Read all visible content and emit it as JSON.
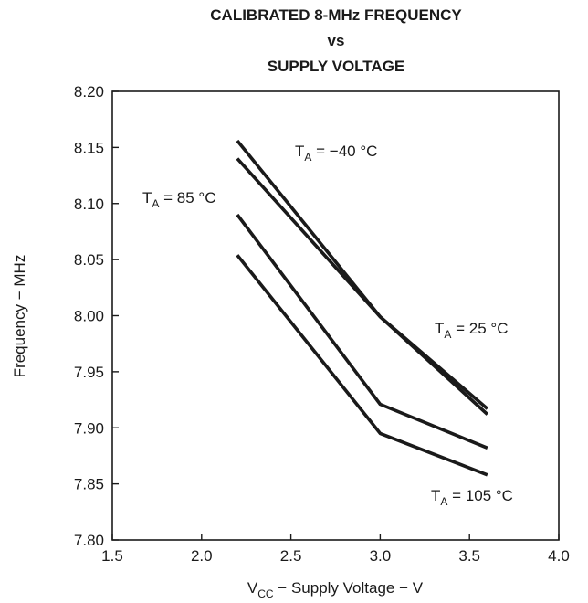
{
  "chart_data": {
    "type": "line",
    "title_lines": [
      "CALIBRATED 8-MHz FREQUENCY",
      "vs",
      "SUPPLY VOLTAGE"
    ],
    "xlabel": {
      "base": "V",
      "sub": "CC",
      "rest": " − Supply Voltage − V"
    },
    "ylabel": "Frequency − MHz",
    "xlim": [
      1.5,
      4.0
    ],
    "ylim": [
      7.8,
      8.2
    ],
    "x_ticks": [
      "1.5",
      "2.0",
      "2.5",
      "3.0",
      "3.5",
      "4.0"
    ],
    "y_ticks": [
      "7.80",
      "7.85",
      "7.90",
      "7.95",
      "8.00",
      "8.05",
      "8.10",
      "8.15",
      "8.20"
    ],
    "grid": false,
    "series": [
      {
        "name": "T_A = −40 °C",
        "x": [
          2.2,
          3.0,
          3.6
        ],
        "y": [
          8.156,
          7.999,
          7.912
        ]
      },
      {
        "name": "T_A = 25 °C",
        "x": [
          2.2,
          3.0,
          3.6
        ],
        "y": [
          8.14,
          7.999,
          7.917
        ]
      },
      {
        "name": "T_A = 85 °C",
        "x": [
          2.2,
          3.0,
          3.6
        ],
        "y": [
          8.09,
          7.921,
          7.882
        ]
      },
      {
        "name": "T_A = 105 °C",
        "x": [
          2.2,
          3.0,
          3.6
        ],
        "y": [
          8.054,
          7.895,
          7.858
        ]
      }
    ],
    "annotations": [
      {
        "base": "T",
        "sub": "A",
        "rest": " = −40 °C"
      },
      {
        "base": "T",
        "sub": "A",
        "rest": " = 85 °C"
      },
      {
        "base": "T",
        "sub": "A",
        "rest": " = 25 °C"
      },
      {
        "base": "T",
        "sub": "A",
        "rest": " = 105 °C"
      }
    ]
  }
}
